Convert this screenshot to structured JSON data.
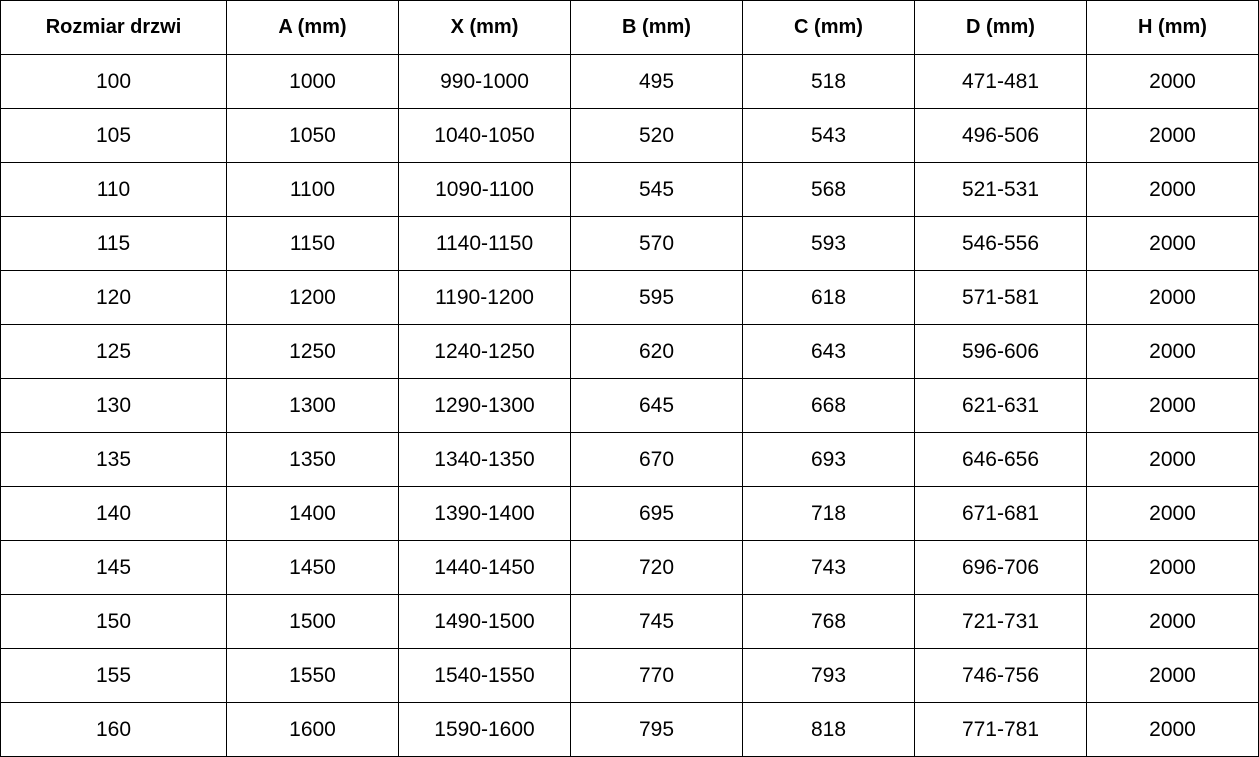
{
  "headers": [
    "Rozmiar drzwi",
    "A (mm)",
    "X (mm)",
    "B (mm)",
    "C (mm)",
    "D (mm)",
    "H (mm)"
  ],
  "rows": [
    [
      "100",
      "1000",
      "990-1000",
      "495",
      "518",
      "471-481",
      "2000"
    ],
    [
      "105",
      "1050",
      "1040-1050",
      "520",
      "543",
      "496-506",
      "2000"
    ],
    [
      "110",
      "1100",
      "1090-1100",
      "545",
      "568",
      "521-531",
      "2000"
    ],
    [
      "115",
      "1150",
      "1140-1150",
      "570",
      "593",
      "546-556",
      "2000"
    ],
    [
      "120",
      "1200",
      "1190-1200",
      "595",
      "618",
      "571-581",
      "2000"
    ],
    [
      "125",
      "1250",
      "1240-1250",
      "620",
      "643",
      "596-606",
      "2000"
    ],
    [
      "130",
      "1300",
      "1290-1300",
      "645",
      "668",
      "621-631",
      "2000"
    ],
    [
      "135",
      "1350",
      "1340-1350",
      "670",
      "693",
      "646-656",
      "2000"
    ],
    [
      "140",
      "1400",
      "1390-1400",
      "695",
      "718",
      "671-681",
      "2000"
    ],
    [
      "145",
      "1450",
      "1440-1450",
      "720",
      "743",
      "696-706",
      "2000"
    ],
    [
      "150",
      "1500",
      "1490-1500",
      "745",
      "768",
      "721-731",
      "2000"
    ],
    [
      "155",
      "1550",
      "1540-1550",
      "770",
      "793",
      "746-756",
      "2000"
    ],
    [
      "160",
      "1600",
      "1590-1600",
      "795",
      "818",
      "771-781",
      "2000"
    ]
  ]
}
